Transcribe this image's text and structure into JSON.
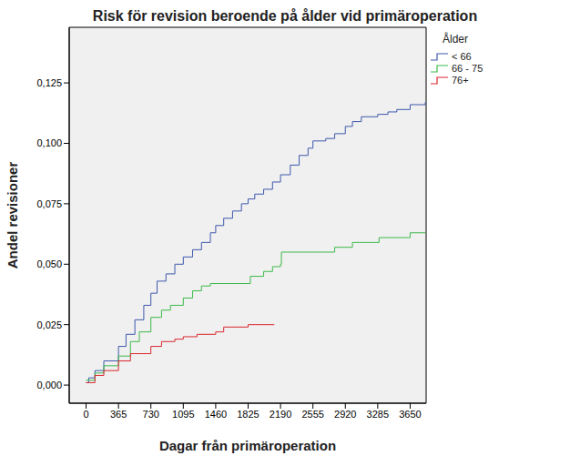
{
  "chart_data": {
    "type": "line",
    "title": "Risk för revision beroende på ålder vid primäroperation",
    "x_label": "Dagar från primäroperation",
    "y_label": "Andel revisioner",
    "legend_title": "Ålder",
    "legend": "right",
    "grid": false,
    "line_style": "step",
    "xlim": [
      -190,
      3830
    ],
    "xticks": [
      0,
      365,
      730,
      1095,
      1460,
      1825,
      2190,
      2555,
      2920,
      3285,
      3650
    ],
    "ylim": [
      -0.0075,
      0.148
    ],
    "yticks": [
      {
        "value": 0,
        "label": "0,000"
      },
      {
        "value": 0.025,
        "label": "0,025"
      },
      {
        "value": 0.05,
        "label": "0,050"
      },
      {
        "value": 0.075,
        "label": "0,075"
      },
      {
        "value": 0.1,
        "label": "0,100"
      },
      {
        "value": 0.125,
        "label": "0,125"
      }
    ],
    "series": [
      {
        "name": "< 66",
        "color": "#3e58ac",
        "x": [
          0,
          30,
          100,
          200,
          365,
          450,
          550,
          650,
          730,
          800,
          900,
          1000,
          1095,
          1200,
          1300,
          1400,
          1460,
          1550,
          1650,
          1750,
          1825,
          1900,
          2000,
          2100,
          2190,
          2300,
          2400,
          2500,
          2555,
          2700,
          2800,
          2920,
          3000,
          3100,
          3285,
          3400,
          3500,
          3650,
          3820
        ],
        "values": [
          0.001,
          0.003,
          0.006,
          0.01,
          0.016,
          0.021,
          0.027,
          0.033,
          0.038,
          0.043,
          0.046,
          0.05,
          0.053,
          0.056,
          0.059,
          0.063,
          0.066,
          0.069,
          0.072,
          0.075,
          0.077,
          0.079,
          0.081,
          0.084,
          0.087,
          0.091,
          0.095,
          0.098,
          0.101,
          0.102,
          0.104,
          0.107,
          0.109,
          0.111,
          0.112,
          0.113,
          0.114,
          0.116,
          0.117
        ]
      },
      {
        "name": "66 - 75",
        "color": "#3cb94a",
        "x": [
          0,
          100,
          200,
          365,
          500,
          600,
          730,
          850,
          950,
          1095,
          1200,
          1300,
          1400,
          1800,
          1850,
          2000,
          2100,
          2190,
          2200,
          2700,
          2800,
          3000,
          3300,
          3650,
          3820
        ],
        "values": [
          0.002,
          0.005,
          0.008,
          0.012,
          0.018,
          0.022,
          0.028,
          0.031,
          0.033,
          0.036,
          0.039,
          0.041,
          0.042,
          0.042,
          0.045,
          0.047,
          0.049,
          0.05,
          0.055,
          0.055,
          0.057,
          0.059,
          0.061,
          0.063,
          0.063
        ]
      },
      {
        "name": "76+",
        "color": "#d9272e",
        "x": [
          0,
          100,
          200,
          365,
          500,
          730,
          850,
          1000,
          1095,
          1250,
          1460,
          1550,
          1825,
          2120
        ],
        "values": [
          0.001,
          0.004,
          0.006,
          0.01,
          0.013,
          0.016,
          0.018,
          0.019,
          0.02,
          0.021,
          0.022,
          0.024,
          0.025,
          0.025
        ]
      }
    ]
  }
}
